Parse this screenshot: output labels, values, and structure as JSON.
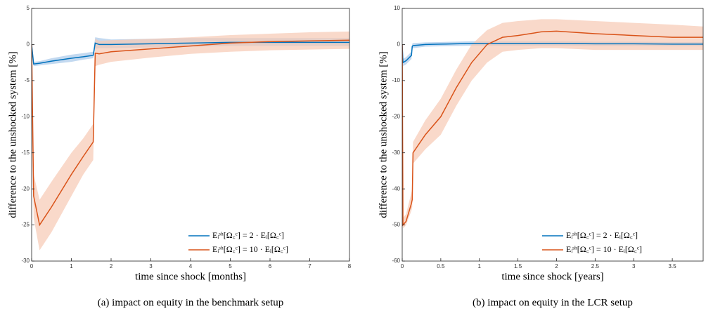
{
  "chart_data": [
    {
      "type": "line",
      "caption": "(a) impact on equity in the benchmark setup",
      "xlabel": "time since shock [months]",
      "ylabel": "difference to the unshocked system [%]",
      "xlim": [
        0,
        8
      ],
      "xticks": [
        0,
        1,
        2,
        3,
        4,
        5,
        6,
        7,
        8
      ],
      "ylim": [
        -30,
        5
      ],
      "yticks": [
        -30,
        -25,
        -20,
        -15,
        -10,
        -5,
        0,
        5
      ],
      "legend": "lower right",
      "x": [
        0,
        0.05,
        0.2,
        0.5,
        1,
        1.3,
        1.55,
        1.6,
        1.7,
        2,
        3,
        4,
        5,
        6,
        7,
        8
      ],
      "series": [
        {
          "name": "Eᵢˢʰ[Ω꜀ᶜ] = 2 · Eᵢ[Ω꜀ᶜ]",
          "color": "#0072BD",
          "band_color": "#a9c9ea",
          "values": [
            0,
            -2.7,
            -2.6,
            -2.3,
            -1.9,
            -1.7,
            -1.5,
            0.2,
            0,
            0,
            0.1,
            0.2,
            0.3,
            0.3,
            0.3,
            0.3
          ],
          "lower": [
            0,
            -3.0,
            -2.9,
            -2.7,
            -2.4,
            -2.1,
            -1.9,
            -0.6,
            -0.5,
            -0.5,
            -0.4,
            -0.3,
            -0.2,
            -0.2,
            -0.2,
            -0.2
          ],
          "upper": [
            0,
            -2.4,
            -2.3,
            -1.9,
            -1.4,
            -1.2,
            -1.0,
            1.0,
            0.9,
            0.7,
            0.8,
            0.9,
            0.9,
            0.9,
            0.9,
            0.9
          ]
        },
        {
          "name": "Eᵢˢʰ[Ω꜀ᶜ] = 10 · Eᵢ[Ω꜀ᶜ]",
          "color": "#D95319",
          "band_color": "#f6c9b3",
          "values": [
            0,
            -21,
            -25,
            -22.5,
            -18,
            -15.5,
            -13.5,
            -1.2,
            -1.3,
            -1,
            -0.6,
            -0.2,
            0.2,
            0.4,
            0.5,
            0.6
          ],
          "lower": [
            0,
            -24,
            -28.5,
            -26,
            -21,
            -18,
            -16,
            -3,
            -2.8,
            -2.4,
            -1.8,
            -1.3,
            -1,
            -0.8,
            -0.7,
            -0.6
          ],
          "upper": [
            0,
            -18,
            -21.5,
            -19,
            -15,
            -13,
            -11,
            0.8,
            0.5,
            0.6,
            0.8,
            1,
            1.3,
            1.5,
            1.7,
            1.8
          ]
        }
      ]
    },
    {
      "type": "line",
      "caption": "(b) impact on equity in the LCR setup",
      "xlabel": "time since shock [years]",
      "ylabel": "difference to the unshocked system [%]",
      "xlim": [
        0,
        3.9
      ],
      "xticks": [
        0,
        0.5,
        1,
        1.5,
        2,
        2.5,
        3,
        3.5
      ],
      "ylim": [
        -60,
        10
      ],
      "yticks": [
        -60,
        -50,
        -40,
        -30,
        -20,
        -10,
        0,
        10
      ],
      "legend": "lower right",
      "x": [
        0,
        0.01,
        0.05,
        0.12,
        0.13,
        0.14,
        0.3,
        0.5,
        0.7,
        0.9,
        1.1,
        1.3,
        1.5,
        1.8,
        2,
        2.5,
        3,
        3.5,
        3.9
      ],
      "series": [
        {
          "name": "Eᵢˢʰ[Ω꜀ᶜ] = 2 · Eᵢ[Ω꜀ᶜ]",
          "color": "#0072BD",
          "band_color": "#a9c9ea",
          "values": [
            0,
            -5,
            -4.5,
            -3,
            -0.5,
            -0.3,
            0,
            0.1,
            0.2,
            0.3,
            0.3,
            0.3,
            0.3,
            0.3,
            0.3,
            0.2,
            0.2,
            0.1,
            0.1
          ],
          "lower": [
            0,
            -6,
            -5.5,
            -4,
            -1.2,
            -1,
            -0.6,
            -0.5,
            -0.4,
            -0.3,
            -0.3,
            -0.3,
            -0.3,
            -0.3,
            -0.3,
            -0.4,
            -0.4,
            -0.5,
            -0.5
          ],
          "upper": [
            0,
            -4,
            -3.5,
            -2,
            0.2,
            0.4,
            0.6,
            0.7,
            0.8,
            0.9,
            0.9,
            0.9,
            0.9,
            0.9,
            0.9,
            0.8,
            0.8,
            0.7,
            0.7
          ]
        },
        {
          "name": "Eᵢˢʰ[Ω꜀ᶜ] = 10 · Eᵢ[Ω꜀ᶜ]",
          "color": "#D95319",
          "band_color": "#f6c9b3",
          "values": [
            0,
            -50,
            -49,
            -44,
            -43,
            -30,
            -25,
            -20,
            -12,
            -5,
            0,
            2,
            2.5,
            3.5,
            3.7,
            3,
            2.5,
            2,
            2
          ],
          "lower": [
            0,
            -51,
            -50,
            -46,
            -45,
            -33,
            -29,
            -25,
            -17,
            -10,
            -5,
            -2,
            -1.5,
            -1,
            -1,
            -1.5,
            -1.5,
            -1.5,
            -1.5
          ],
          "upper": [
            0,
            -48,
            -47,
            -41,
            -40,
            -27,
            -21,
            -15,
            -7,
            0,
            4,
            6,
            6.5,
            7,
            7,
            6.5,
            6,
            5.5,
            5
          ]
        }
      ]
    }
  ]
}
